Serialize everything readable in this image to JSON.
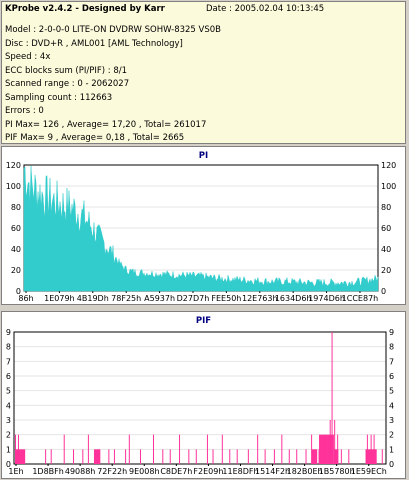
{
  "header": {
    "title": "KProbe v2.4.2 - Designed by Karr",
    "date": "Date : 2005.02.04 10:13:45"
  },
  "info_lines": [
    "Model : 2-0-0-0 LITE-ON DVDRW SOHW-8325  VS0B",
    "Disc : DVD+R , AML001 [AML Technology]",
    "Speed : 4x",
    "ECC blocks sum (PI/PIF) : 8/1",
    "Scanned range : 0 - 2062027",
    "Sampling count : 112663",
    "Errors : 0",
    "PI Max= 126 , Average= 17,20 , Total= 261017",
    "PIF Max= 9 , Average= 0,18 , Total= 2665"
  ],
  "colors": {
    "pi": "#33cccc",
    "pif": "#ff3399",
    "panel_bg": "#ffffff",
    "info_bg": "#fbfadb"
  },
  "chart_data": [
    {
      "type": "area",
      "title": "PI",
      "ylim": [
        0,
        120
      ],
      "yticks": [
        0,
        20,
        40,
        60,
        80,
        100,
        120
      ],
      "xticks": [
        "86h",
        "1E079h",
        "4B19Dh",
        "78F25h",
        "A5937h",
        "D27D7h",
        "FEE50h",
        "12E763h",
        "1634D6h",
        "1974D6h",
        "1CCE87h"
      ],
      "profile": [
        [
          0,
          118
        ],
        [
          0.01,
          106
        ],
        [
          0.02,
          100
        ],
        [
          0.03,
          97
        ],
        [
          0.05,
          92
        ],
        [
          0.07,
          88
        ],
        [
          0.09,
          85
        ],
        [
          0.11,
          82
        ],
        [
          0.13,
          80
        ],
        [
          0.15,
          76
        ],
        [
          0.17,
          70
        ],
        [
          0.19,
          62
        ],
        [
          0.21,
          52
        ],
        [
          0.23,
          44
        ],
        [
          0.25,
          36
        ],
        [
          0.27,
          26
        ],
        [
          0.29,
          20
        ],
        [
          0.31,
          18
        ],
        [
          0.35,
          17
        ],
        [
          0.4,
          16
        ],
        [
          0.45,
          15
        ],
        [
          0.5,
          14
        ],
        [
          0.55,
          12
        ],
        [
          0.6,
          11
        ],
        [
          0.65,
          10
        ],
        [
          0.7,
          9
        ],
        [
          0.75,
          9
        ],
        [
          0.8,
          8
        ],
        [
          0.85,
          8
        ],
        [
          0.9,
          8
        ],
        [
          0.95,
          9
        ],
        [
          1.0,
          12
        ]
      ]
    },
    {
      "type": "bar",
      "title": "PIF",
      "ylim": [
        0,
        9
      ],
      "yticks": [
        0,
        1,
        2,
        3,
        4,
        5,
        6,
        7,
        8,
        9
      ],
      "xticks": [
        "1Eh",
        "1D8BFh",
        "49088h",
        "72F22h",
        "9E008h",
        "C8DE7h",
        "F2E09h",
        "11E8DFh",
        "1514F2h",
        "182B0Eh",
        "1B5780h",
        "1E59ECh"
      ],
      "spikes": [
        [
          0.004,
          2
        ],
        [
          0.012,
          2
        ],
        [
          0.085,
          1
        ],
        [
          0.1,
          1
        ],
        [
          0.135,
          2
        ],
        [
          0.16,
          1
        ],
        [
          0.185,
          1
        ],
        [
          0.2,
          2
        ],
        [
          0.23,
          1
        ],
        [
          0.255,
          1
        ],
        [
          0.27,
          1
        ],
        [
          0.3,
          1
        ],
        [
          0.31,
          2
        ],
        [
          0.34,
          1
        ],
        [
          0.375,
          2
        ],
        [
          0.4,
          1
        ],
        [
          0.42,
          1
        ],
        [
          0.445,
          2
        ],
        [
          0.47,
          1
        ],
        [
          0.49,
          1
        ],
        [
          0.52,
          2
        ],
        [
          0.535,
          1
        ],
        [
          0.56,
          2
        ],
        [
          0.58,
          1
        ],
        [
          0.6,
          1
        ],
        [
          0.63,
          1
        ],
        [
          0.655,
          2
        ],
        [
          0.675,
          1
        ],
        [
          0.7,
          1
        ],
        [
          0.72,
          2
        ],
        [
          0.74,
          1
        ],
        [
          0.76,
          1
        ],
        [
          0.785,
          1
        ],
        [
          0.8,
          2
        ],
        [
          0.82,
          1
        ],
        [
          0.835,
          2
        ],
        [
          0.85,
          3
        ],
        [
          0.855,
          9
        ],
        [
          0.862,
          3
        ],
        [
          0.87,
          2
        ],
        [
          0.88,
          1
        ],
        [
          0.9,
          1
        ],
        [
          0.95,
          2
        ],
        [
          0.96,
          2
        ],
        [
          0.968,
          2
        ],
        [
          0.99,
          1
        ]
      ],
      "dense_ranges": [
        [
          0.005,
          0.03,
          1
        ],
        [
          0.215,
          0.232,
          1
        ],
        [
          0.8,
          0.815,
          1
        ],
        [
          0.82,
          0.86,
          2
        ],
        [
          0.86,
          0.872,
          1
        ],
        [
          0.945,
          0.975,
          1
        ]
      ]
    }
  ]
}
